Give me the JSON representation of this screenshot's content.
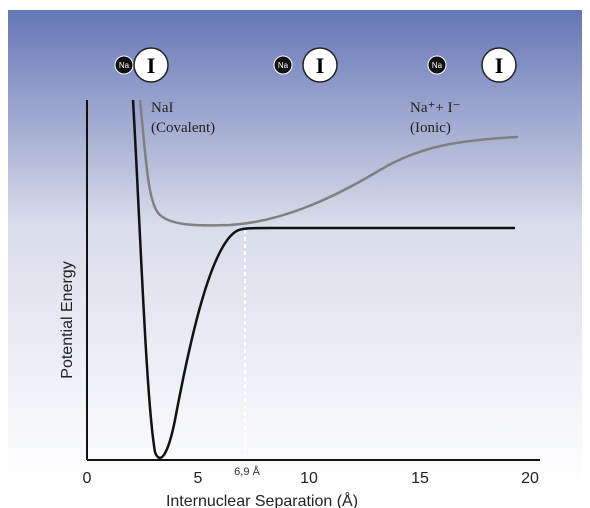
{
  "atoms": [
    {
      "na": "Na",
      "i": "I"
    },
    {
      "na": "Na",
      "i": "I"
    },
    {
      "na": "Na",
      "i": "I"
    }
  ],
  "covalent": {
    "name": "NaI",
    "kind": "(Covalent)"
  },
  "ionic": {
    "name": "Na⁺+ I⁻",
    "kind": "(Ionic)"
  },
  "axis": {
    "y_label": "Potential Energy",
    "x_label": "Internuclear Separation (Å)",
    "x_ticks": [
      "0",
      "5",
      "10",
      "15",
      "20"
    ],
    "marker": "6,9 Å"
  }
}
